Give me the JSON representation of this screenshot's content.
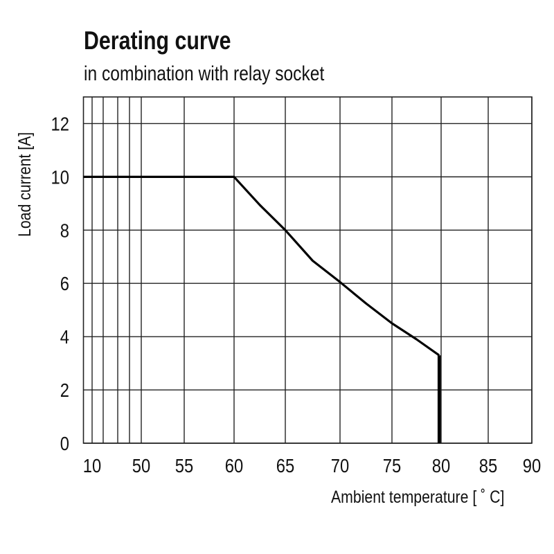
{
  "chart_data": {
    "type": "line",
    "title": "Derating curve",
    "subtitle": "in combination with relay socket",
    "xlabel": "Ambient temperature [ ˚ C]",
    "ylabel": "Load current [A]",
    "grid": true,
    "xlim": [
      10,
      90
    ],
    "ylim": [
      0,
      13
    ],
    "xticks": [
      {
        "value": 10,
        "label": "10"
      },
      {
        "value": 20,
        "label": ""
      },
      {
        "value": 30,
        "label": ""
      },
      {
        "value": 40,
        "label": ""
      },
      {
        "value": 50,
        "label": "50"
      },
      {
        "value": 55,
        "label": "55"
      },
      {
        "value": 60,
        "label": "60"
      },
      {
        "value": 65,
        "label": "65"
      },
      {
        "value": 70,
        "label": "70"
      },
      {
        "value": 75,
        "label": "75"
      },
      {
        "value": 80,
        "label": "80"
      },
      {
        "value": 85,
        "label": "85"
      },
      {
        "value": 90,
        "label": "90"
      }
    ],
    "yticks": [
      0,
      2,
      4,
      6,
      8,
      10,
      12
    ],
    "series": [
      {
        "name": "Derating curve",
        "color": "#000000",
        "x": [
          5,
          60,
          62.5,
          65,
          67.5,
          70,
          72.5,
          75,
          77.5,
          79.8,
          79.8
        ],
        "y": [
          10,
          10,
          8.95,
          8.0,
          6.85,
          6.05,
          5.25,
          4.5,
          3.9,
          3.3,
          0
        ]
      }
    ]
  }
}
